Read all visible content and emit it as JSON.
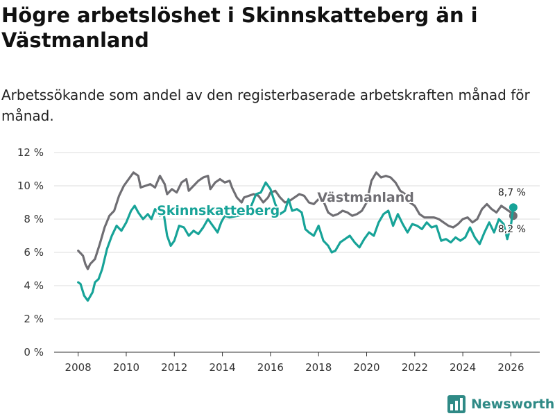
{
  "title": "Högre arbetslöshet i Skinnskatteberg än i Västmanland",
  "subtitle": "Arbetssökande som andel av den registerbaserade arbetskraften månad för månad.",
  "brand": "Newsworthy",
  "colors": {
    "skinnskatteberg": "#17a398",
    "vastmanland": "#6f6e73",
    "grid": "#dddddd",
    "brand": "#2f8a86"
  },
  "chart_data": {
    "type": "line",
    "title": "Högre arbetslöshet i Skinnskatteberg än i Västmanland",
    "subtitle": "Arbetssökande som andel av den registerbaserade arbetskraften månad för månad.",
    "xlabel": "",
    "ylabel": "",
    "xlim": [
      2007,
      2027.2
    ],
    "ylim": [
      0,
      12
    ],
    "grid": true,
    "yticks": [
      0,
      2,
      4,
      6,
      8,
      10,
      12
    ],
    "ytick_labels": [
      "0 %",
      "2 %",
      "4 %",
      "6 %",
      "8 %",
      "10 %",
      "12 %"
    ],
    "xticks": [
      2008,
      2010,
      2012,
      2014,
      2016,
      2018,
      2020,
      2022,
      2024,
      2026
    ],
    "xtick_labels": [
      "2008",
      "2010",
      "2012",
      "2014",
      "2016",
      "2018",
      "2020",
      "2022",
      "2024",
      "2026"
    ],
    "series": [
      {
        "name": "Västmanland",
        "label": "Västmanland",
        "color": "#6f6e73",
        "end_label": "8,2 %",
        "points": [
          [
            2008.0,
            6.1
          ],
          [
            2008.2,
            5.8
          ],
          [
            2008.3,
            5.3
          ],
          [
            2008.4,
            5.0
          ],
          [
            2008.5,
            5.3
          ],
          [
            2008.7,
            5.6
          ],
          [
            2008.9,
            6.5
          ],
          [
            2009.1,
            7.5
          ],
          [
            2009.3,
            8.2
          ],
          [
            2009.5,
            8.5
          ],
          [
            2009.7,
            9.4
          ],
          [
            2009.9,
            10.0
          ],
          [
            2010.1,
            10.4
          ],
          [
            2010.3,
            10.8
          ],
          [
            2010.5,
            10.6
          ],
          [
            2010.6,
            9.9
          ],
          [
            2010.8,
            10.0
          ],
          [
            2011.0,
            10.1
          ],
          [
            2011.2,
            9.9
          ],
          [
            2011.4,
            10.6
          ],
          [
            2011.6,
            10.1
          ],
          [
            2011.7,
            9.5
          ],
          [
            2011.9,
            9.8
          ],
          [
            2012.1,
            9.6
          ],
          [
            2012.3,
            10.2
          ],
          [
            2012.5,
            10.4
          ],
          [
            2012.6,
            9.7
          ],
          [
            2012.8,
            10.0
          ],
          [
            2013.0,
            10.3
          ],
          [
            2013.2,
            10.5
          ],
          [
            2013.4,
            10.6
          ],
          [
            2013.5,
            9.8
          ],
          [
            2013.7,
            10.2
          ],
          [
            2013.9,
            10.4
          ],
          [
            2014.1,
            10.2
          ],
          [
            2014.3,
            10.3
          ],
          [
            2014.4,
            9.9
          ],
          [
            2014.6,
            9.3
          ],
          [
            2014.8,
            9.0
          ],
          [
            2014.9,
            9.3
          ],
          [
            2015.1,
            9.4
          ],
          [
            2015.3,
            9.5
          ],
          [
            2015.5,
            9.4
          ],
          [
            2015.7,
            9.0
          ],
          [
            2015.9,
            9.3
          ],
          [
            2016.0,
            9.6
          ],
          [
            2016.2,
            9.7
          ],
          [
            2016.4,
            9.3
          ],
          [
            2016.6,
            9.0
          ],
          [
            2016.8,
            9.1
          ],
          [
            2017.0,
            9.3
          ],
          [
            2017.2,
            9.5
          ],
          [
            2017.4,
            9.4
          ],
          [
            2017.6,
            9.0
          ],
          [
            2017.8,
            8.9
          ],
          [
            2018.0,
            9.2
          ],
          [
            2018.2,
            9.1
          ],
          [
            2018.4,
            8.4
          ],
          [
            2018.6,
            8.2
          ],
          [
            2018.8,
            8.3
          ],
          [
            2019.0,
            8.5
          ],
          [
            2019.2,
            8.4
          ],
          [
            2019.4,
            8.2
          ],
          [
            2019.6,
            8.3
          ],
          [
            2019.8,
            8.5
          ],
          [
            2020.0,
            9.0
          ],
          [
            2020.2,
            10.3
          ],
          [
            2020.4,
            10.8
          ],
          [
            2020.6,
            10.5
          ],
          [
            2020.8,
            10.6
          ],
          [
            2021.0,
            10.5
          ],
          [
            2021.2,
            10.2
          ],
          [
            2021.4,
            9.7
          ],
          [
            2021.6,
            9.5
          ],
          [
            2021.8,
            9.0
          ],
          [
            2022.0,
            8.8
          ],
          [
            2022.2,
            8.3
          ],
          [
            2022.4,
            8.1
          ],
          [
            2022.6,
            8.1
          ],
          [
            2022.8,
            8.1
          ],
          [
            2023.0,
            8.0
          ],
          [
            2023.2,
            7.8
          ],
          [
            2023.4,
            7.6
          ],
          [
            2023.6,
            7.5
          ],
          [
            2023.8,
            7.7
          ],
          [
            2024.0,
            8.0
          ],
          [
            2024.2,
            8.1
          ],
          [
            2024.4,
            7.8
          ],
          [
            2024.6,
            8.0
          ],
          [
            2024.8,
            8.6
          ],
          [
            2025.0,
            8.9
          ],
          [
            2025.2,
            8.6
          ],
          [
            2025.4,
            8.4
          ],
          [
            2025.6,
            8.8
          ],
          [
            2025.8,
            8.6
          ],
          [
            2026.0,
            8.4
          ],
          [
            2026.1,
            8.2
          ]
        ]
      },
      {
        "name": "Skinnskatteberg",
        "label": "Skinnskatteberg",
        "color": "#17a398",
        "end_label": "8,7 %",
        "points": [
          [
            2008.0,
            4.2
          ],
          [
            2008.1,
            4.1
          ],
          [
            2008.25,
            3.4
          ],
          [
            2008.4,
            3.1
          ],
          [
            2008.6,
            3.6
          ],
          [
            2008.7,
            4.2
          ],
          [
            2008.85,
            4.4
          ],
          [
            2009.0,
            5.0
          ],
          [
            2009.2,
            6.2
          ],
          [
            2009.4,
            7.0
          ],
          [
            2009.6,
            7.6
          ],
          [
            2009.8,
            7.3
          ],
          [
            2010.0,
            7.8
          ],
          [
            2010.2,
            8.5
          ],
          [
            2010.35,
            8.8
          ],
          [
            2010.5,
            8.4
          ],
          [
            2010.7,
            8.0
          ],
          [
            2010.9,
            8.3
          ],
          [
            2011.05,
            8.0
          ],
          [
            2011.2,
            8.6
          ],
          [
            2011.4,
            8.2
          ],
          [
            2011.55,
            8.4
          ],
          [
            2011.7,
            7.0
          ],
          [
            2011.85,
            6.4
          ],
          [
            2012.0,
            6.7
          ],
          [
            2012.2,
            7.6
          ],
          [
            2012.4,
            7.5
          ],
          [
            2012.6,
            7.0
          ],
          [
            2012.8,
            7.3
          ],
          [
            2013.0,
            7.1
          ],
          [
            2013.2,
            7.5
          ],
          [
            2013.4,
            8.0
          ],
          [
            2013.6,
            7.6
          ],
          [
            2013.8,
            7.2
          ],
          [
            2013.95,
            7.8
          ],
          [
            2014.1,
            8.2
          ],
          [
            2014.3,
            8.1
          ],
          [
            2015.0,
            8.3
          ],
          [
            2015.2,
            8.8
          ],
          [
            2015.4,
            9.5
          ],
          [
            2015.6,
            9.6
          ],
          [
            2015.8,
            10.2
          ],
          [
            2016.0,
            9.8
          ],
          [
            2016.2,
            8.9
          ],
          [
            2016.4,
            8.3
          ],
          [
            2016.6,
            8.5
          ],
          [
            2016.75,
            9.2
          ],
          [
            2016.9,
            8.5
          ],
          [
            2017.1,
            8.6
          ],
          [
            2017.3,
            8.4
          ],
          [
            2017.45,
            7.4
          ],
          [
            2017.6,
            7.2
          ],
          [
            2017.8,
            7.0
          ],
          [
            2018.0,
            7.6
          ],
          [
            2018.2,
            6.7
          ],
          [
            2018.4,
            6.4
          ],
          [
            2018.55,
            6.0
          ],
          [
            2018.7,
            6.1
          ],
          [
            2018.9,
            6.6
          ],
          [
            2019.1,
            6.8
          ],
          [
            2019.3,
            7.0
          ],
          [
            2019.5,
            6.6
          ],
          [
            2019.7,
            6.3
          ],
          [
            2019.9,
            6.8
          ],
          [
            2020.1,
            7.2
          ],
          [
            2020.3,
            7.0
          ],
          [
            2020.5,
            7.8
          ],
          [
            2020.7,
            8.3
          ],
          [
            2020.9,
            8.5
          ],
          [
            2021.1,
            7.6
          ],
          [
            2021.3,
            8.3
          ],
          [
            2021.5,
            7.7
          ],
          [
            2021.7,
            7.2
          ],
          [
            2021.9,
            7.7
          ],
          [
            2022.1,
            7.6
          ],
          [
            2022.3,
            7.4
          ],
          [
            2022.5,
            7.8
          ],
          [
            2022.7,
            7.5
          ],
          [
            2022.9,
            7.6
          ],
          [
            2023.1,
            6.7
          ],
          [
            2023.3,
            6.8
          ],
          [
            2023.5,
            6.6
          ],
          [
            2023.7,
            6.9
          ],
          [
            2023.9,
            6.7
          ],
          [
            2024.1,
            6.9
          ],
          [
            2024.3,
            7.5
          ],
          [
            2024.5,
            6.9
          ],
          [
            2024.7,
            6.5
          ],
          [
            2024.9,
            7.2
          ],
          [
            2025.1,
            7.8
          ],
          [
            2025.3,
            7.2
          ],
          [
            2025.5,
            8.0
          ],
          [
            2025.7,
            7.7
          ],
          [
            2025.85,
            6.8
          ],
          [
            2026.0,
            7.6
          ],
          [
            2026.1,
            8.7
          ]
        ]
      }
    ]
  }
}
